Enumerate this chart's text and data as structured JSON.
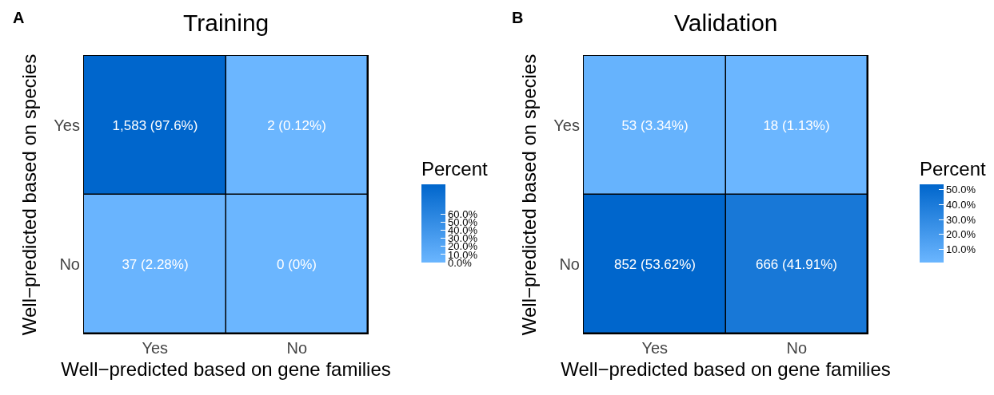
{
  "chart_data": [
    {
      "type": "heatmap",
      "title": "Training",
      "xlabel": "Well−predicted based on gene families",
      "ylabel": "Well−predicted based on species",
      "clabel": "Percent",
      "annotations": [
        "A"
      ],
      "categories": [
        "Yes",
        "No"
      ],
      "y_categories": [
        "Yes",
        "No"
      ],
      "cells": [
        [
          97.6,
          0.12
        ],
        [
          2.28,
          0
        ]
      ],
      "cell_labels": [
        [
          "1,583 (97.6%)",
          "2 (0.12%)"
        ],
        [
          "37 (2.28%)",
          "0 (0%)"
        ]
      ],
      "clim": [
        0,
        97.6
      ],
      "cticks": [
        {
          "value": 0,
          "label": "0.0%"
        },
        {
          "value": 10,
          "label": "10.0%"
        },
        {
          "value": 20,
          "label": "20.0%"
        },
        {
          "value": 30,
          "label": "30.0%"
        },
        {
          "value": 40,
          "label": "40.0%"
        },
        {
          "value": 50,
          "label": "50.0%"
        },
        {
          "value": 60,
          "label": "60.0%"
        }
      ]
    },
    {
      "type": "heatmap",
      "title": "Validation",
      "xlabel": "Well−predicted based on gene families",
      "ylabel": "Well−predicted based on species",
      "clabel": "Percent",
      "annotations": [
        "B"
      ],
      "categories": [
        "Yes",
        "No"
      ],
      "y_categories": [
        "Yes",
        "No"
      ],
      "cells": [
        [
          3.34,
          1.13
        ],
        [
          53.62,
          41.91
        ]
      ],
      "cell_labels": [
        [
          "53 (3.34%)",
          "18 (1.13%)"
        ],
        [
          "852 (53.62%)",
          "666 (41.91%)"
        ]
      ],
      "clim": [
        1.13,
        53.62
      ],
      "cticks": [
        {
          "value": 10,
          "label": "10.0%"
        },
        {
          "value": 20,
          "label": "20.0%"
        },
        {
          "value": 30,
          "label": "30.0%"
        },
        {
          "value": 40,
          "label": "40.0%"
        },
        {
          "value": 50,
          "label": "50.0%"
        }
      ]
    }
  ]
}
